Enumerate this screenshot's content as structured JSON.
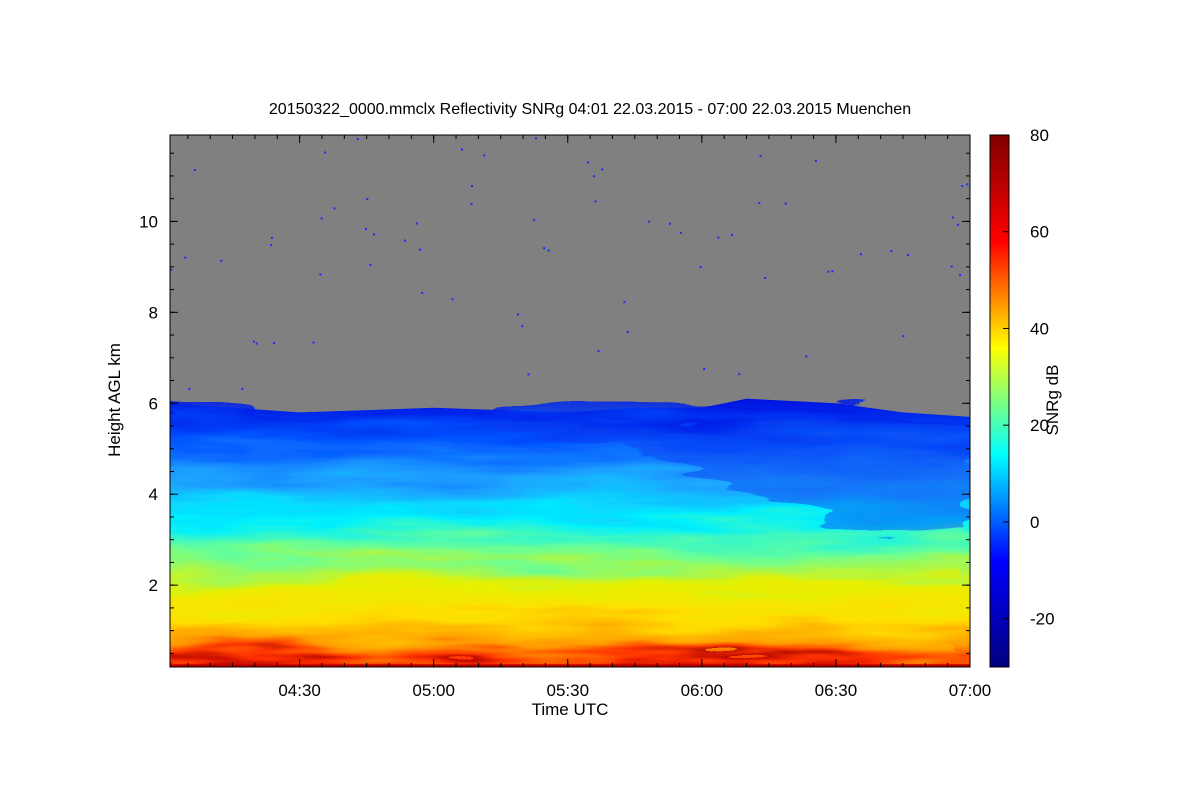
{
  "chart_data": {
    "type": "heatmap",
    "title": "20150322_0000.mmclx Reflectivity SNRg   04:01 22.03.2015 - 07:00 22.03.2015 Muenchen",
    "xlabel": "Time UTC",
    "ylabel": "Height AGL km",
    "x_range": [
      "04:01",
      "07:00"
    ],
    "x_ticks": [
      "04:30",
      "05:00",
      "05:30",
      "06:00",
      "06:30",
      "07:00"
    ],
    "ylim": [
      0.2,
      11.9
    ],
    "y_ticks": [
      2,
      4,
      6,
      8,
      10
    ],
    "colorbar": {
      "label": "SNRg dB",
      "range": [
        -30,
        80
      ],
      "ticks": [
        -20,
        0,
        20,
        40,
        60,
        80
      ],
      "colormap": [
        "#00007f",
        "#0000ff",
        "#00ffff",
        "#ffff00",
        "#ff0000",
        "#7f0000"
      ]
    },
    "no_signal_color": "#808080",
    "series": [
      {
        "name": "cloud_top_km",
        "x": [
          "04:01",
          "04:30",
          "05:00",
          "05:30",
          "05:45",
          "06:00",
          "06:10",
          "06:30",
          "06:45",
          "07:00"
        ],
        "values": [
          6.0,
          5.8,
          5.9,
          5.8,
          5.9,
          5.9,
          6.1,
          6.0,
          5.8,
          5.7
        ]
      }
    ]
  }
}
